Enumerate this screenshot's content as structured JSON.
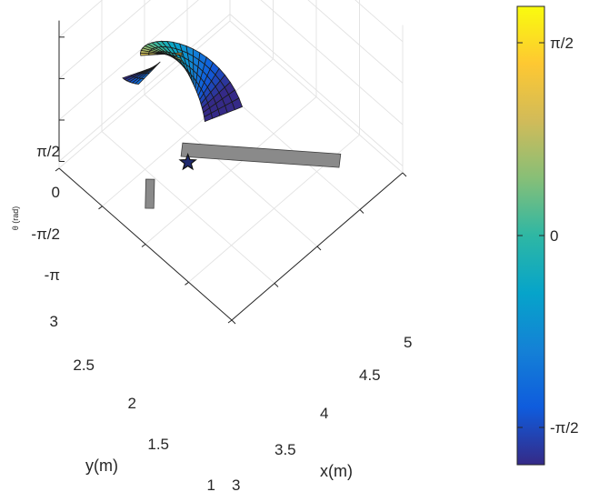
{
  "chart_data": {
    "type": "3d-surface-with-colorbar",
    "x_axis": {
      "label": "x(m)",
      "ticks": [
        "3",
        "3.5",
        "4",
        "4.5",
        "5"
      ],
      "range": [
        3,
        5
      ]
    },
    "y_axis": {
      "label": "y(m)",
      "ticks": [
        "1",
        "1.5",
        "2",
        "2.5",
        "3"
      ],
      "range": [
        1,
        3
      ]
    },
    "z_axis": {
      "label": "θ (rad)",
      "ticks": [
        "-π",
        "-π/2",
        "0",
        "π/2"
      ],
      "range_rad": [
        -3.1416,
        1.5708
      ]
    },
    "grid": true,
    "colorbar": {
      "ticks": [
        "-π/2",
        "0",
        "π/2"
      ],
      "colormap": [
        "#352a87",
        "#0f5cdd",
        "#1481d6",
        "#06a4ca",
        "#2eb7a4",
        "#87bf77",
        "#d1bb59",
        "#fec832",
        "#f9fb0e"
      ],
      "placement": "right"
    },
    "marker": {
      "symbol": "star",
      "fill": "#1f2a6e"
    },
    "obstacle_color": "#8a8a8a"
  }
}
